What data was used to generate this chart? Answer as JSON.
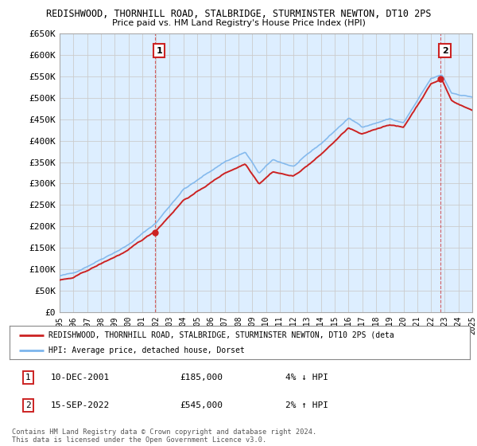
{
  "title1": "REDISHWOOD, THORNHILL ROAD, STALBRIDGE, STURMINSTER NEWTON, DT10 2PS",
  "title2": "Price paid vs. HM Land Registry's House Price Index (HPI)",
  "ylabel_ticks": [
    "£0",
    "£50K",
    "£100K",
    "£150K",
    "£200K",
    "£250K",
    "£300K",
    "£350K",
    "£400K",
    "£450K",
    "£500K",
    "£550K",
    "£600K",
    "£650K"
  ],
  "ytick_vals": [
    0,
    50000,
    100000,
    150000,
    200000,
    250000,
    300000,
    350000,
    400000,
    450000,
    500000,
    550000,
    600000,
    650000
  ],
  "sale1_year": 2001.94,
  "sale1_price": 185000,
  "sale1_label": "1",
  "sale2_year": 2022.71,
  "sale2_price": 545000,
  "sale2_label": "2",
  "legend_red": "REDISHWOOD, THORNHILL ROAD, STALBRIDGE, STURMINSTER NEWTON, DT10 2PS (deta",
  "legend_blue": "HPI: Average price, detached house, Dorset",
  "ann1_date": "10-DEC-2001",
  "ann1_price": "£185,000",
  "ann1_hpi": "4% ↓ HPI",
  "ann2_date": "15-SEP-2022",
  "ann2_price": "£545,000",
  "ann2_hpi": "2% ↑ HPI",
  "copyright": "Contains HM Land Registry data © Crown copyright and database right 2024.\nThis data is licensed under the Open Government Licence v3.0.",
  "hpi_color": "#7cb5ec",
  "price_color": "#cc2222",
  "dashed_color": "#cc2222",
  "grid_color": "#cccccc",
  "plot_bg_color": "#ddeeff",
  "bg_color": "#ffffff",
  "xmin": 1995.0,
  "xmax": 2025.0,
  "ymin": 0,
  "ymax": 650000
}
